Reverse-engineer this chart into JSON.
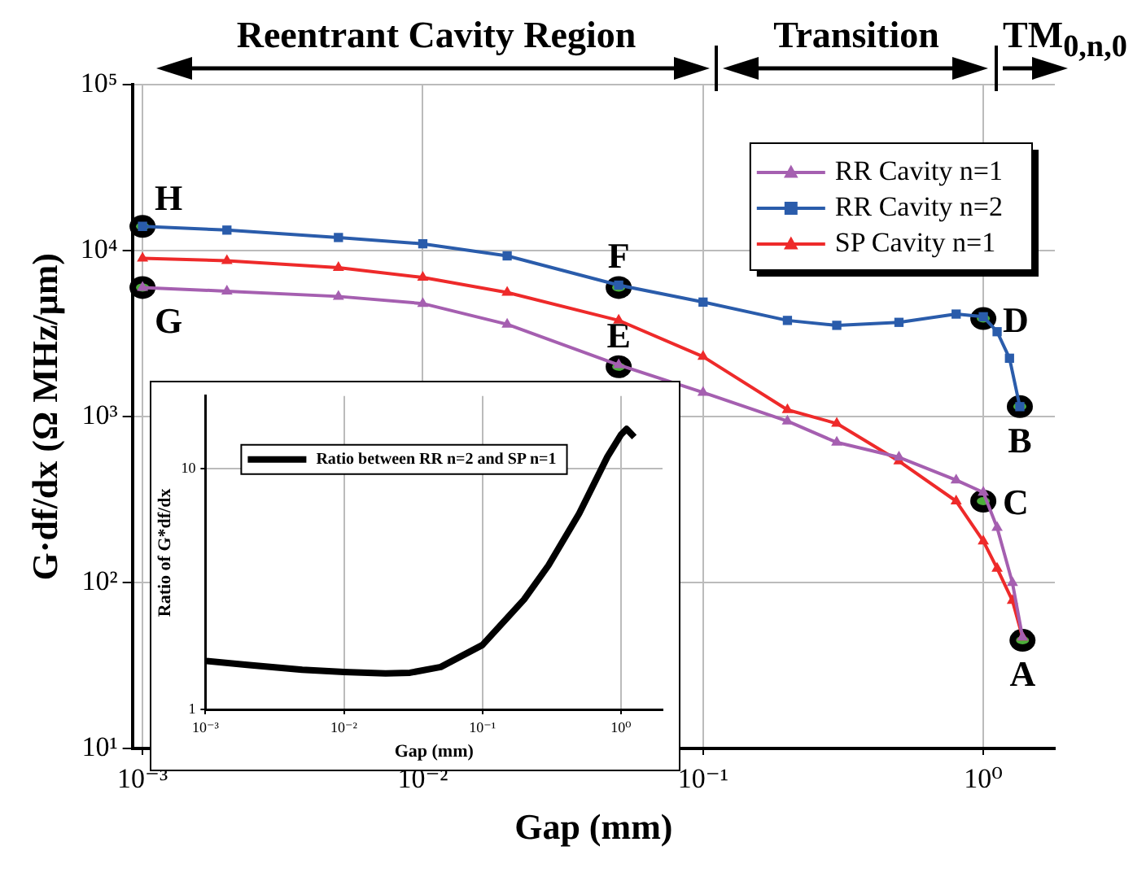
{
  "chart_data": [
    {
      "type": "line",
      "xlabel": "Gap (mm)",
      "ylabel": "G·df/dx (Ω MHz/μm)",
      "log": "xy",
      "xlim": [
        0.00092,
        1.8
      ],
      "ylim": [
        10,
        100000
      ],
      "xticks": [
        {
          "value": 0.001,
          "label": "10⁻³"
        },
        {
          "value": 0.01,
          "label": "10⁻²"
        },
        {
          "value": 0.1,
          "label": "10⁻¹"
        },
        {
          "value": 1,
          "label": "10⁰"
        }
      ],
      "yticks": [
        {
          "value": 10,
          "label": "10¹"
        },
        {
          "value": 100,
          "label": "10²"
        },
        {
          "value": 1000,
          "label": "10³"
        },
        {
          "value": 10000,
          "label": "10⁴"
        },
        {
          "value": 100000,
          "label": "10⁵"
        }
      ],
      "grid": true,
      "legend": "top right",
      "series": [
        {
          "name": "RR Cavity n=1",
          "color": "#a55fb0",
          "marker": "triangle",
          "x": [
            0.001,
            0.002,
            0.005,
            0.01,
            0.02,
            0.05,
            0.1,
            0.2,
            0.3,
            0.5,
            0.8,
            1.0,
            1.12,
            1.27,
            1.38
          ],
          "values": [
            6000,
            5700,
            5300,
            4800,
            3600,
            2050,
            1400,
            940,
            700,
            570,
            415,
            350,
            215,
            100,
            47
          ]
        },
        {
          "name": "RR Cavity n=2",
          "color": "#2a5cab",
          "marker": "square",
          "x": [
            0.001,
            0.002,
            0.005,
            0.01,
            0.02,
            0.05,
            0.1,
            0.2,
            0.3,
            0.5,
            0.8,
            1.0,
            1.12,
            1.24,
            1.35
          ],
          "values": [
            14000,
            13300,
            12000,
            11000,
            9300,
            6200,
            4900,
            3800,
            3550,
            3700,
            4150,
            4000,
            3250,
            2250,
            1150
          ]
        },
        {
          "name": "SP Cavity n=1",
          "color": "#ee2a2a",
          "marker": "triangle",
          "x": [
            0.001,
            0.002,
            0.005,
            0.01,
            0.02,
            0.05,
            0.1,
            0.2,
            0.3,
            0.5,
            0.8,
            1.0,
            1.12,
            1.27,
            1.38
          ],
          "values": [
            9000,
            8700,
            7900,
            6900,
            5600,
            3800,
            2300,
            1100,
            910,
            540,
            310,
            178,
            122,
            78,
            47
          ]
        }
      ],
      "annotations": [
        {
          "text": "A",
          "x": 1.38,
          "y": 45
        },
        {
          "text": "B",
          "x": 1.35,
          "y": 1150
        },
        {
          "text": "C",
          "x": 1.0,
          "y": 310
        },
        {
          "text": "D",
          "x": 1.0,
          "y": 3900
        },
        {
          "text": "E",
          "x": 0.05,
          "y": 2000
        },
        {
          "text": "F",
          "x": 0.05,
          "y": 6000
        },
        {
          "text": "G",
          "x": 0.001,
          "y": 6000
        },
        {
          "text": "H",
          "x": 0.001,
          "y": 14000
        },
        "Reentrant Cavity Region",
        "Transition",
        "TM$_{0,n,0}$"
      ]
    },
    {
      "type": "line",
      "xlabel": "Gap (mm)",
      "ylabel": "Ratio of G*df/dx",
      "log": "xy",
      "xlim": [
        0.001,
        2
      ],
      "ylim": [
        1,
        20
      ],
      "xticks": [
        {
          "value": 0.001,
          "label": "10⁻³"
        },
        {
          "value": 0.01,
          "label": "10⁻²"
        },
        {
          "value": 0.1,
          "label": "10⁻¹"
        },
        {
          "value": 1,
          "label": "10⁰"
        }
      ],
      "yticks": [
        1,
        10
      ],
      "grid": true,
      "legend": "top left",
      "series": [
        {
          "name": "Ratio between RR n=2 and SP n=1",
          "color": "#000000",
          "marker": "none",
          "x": [
            0.001,
            0.002,
            0.005,
            0.01,
            0.02,
            0.03,
            0.05,
            0.1,
            0.2,
            0.3,
            0.5,
            0.8,
            1.0,
            1.1,
            1.25
          ],
          "values": [
            1.59,
            1.53,
            1.46,
            1.43,
            1.41,
            1.42,
            1.5,
            1.85,
            2.86,
            3.96,
            6.5,
            11.2,
            13.8,
            14.6,
            13.5
          ]
        }
      ]
    }
  ]
}
